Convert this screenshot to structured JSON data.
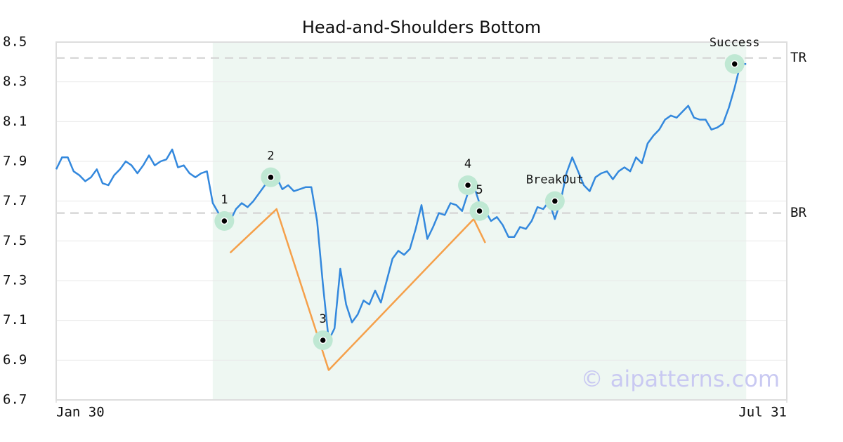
{
  "chart_data": {
    "type": "line",
    "title": "Head-and-Shoulders Bottom",
    "xlim": [
      0,
      126
    ],
    "xticks": [
      {
        "value": 0,
        "label": "Jan 30"
      },
      {
        "value": 126,
        "label": "Jul 31"
      }
    ],
    "ylim": [
      6.7,
      8.5
    ],
    "yticks": [
      6.7,
      6.9,
      7.1,
      7.3,
      7.5,
      7.7,
      7.9,
      8.1,
      8.3,
      8.5
    ],
    "grid": true,
    "shaded_range": [
      27,
      119
    ],
    "series": [
      {
        "color": "#3388dd",
        "x": [
          0,
          1,
          2,
          3,
          4,
          5,
          6,
          7,
          8,
          9,
          10,
          11,
          12,
          13,
          14,
          15,
          16,
          17,
          18,
          19,
          20,
          21,
          22,
          23,
          24,
          25,
          26,
          27,
          28,
          29,
          30,
          31,
          32,
          33,
          34,
          35,
          36,
          37,
          38,
          39,
          40,
          41,
          42,
          43,
          44,
          45,
          46,
          47,
          48,
          49,
          50,
          51,
          52,
          53,
          54,
          55,
          56,
          57,
          58,
          59,
          60,
          61,
          62,
          63,
          64,
          65,
          66,
          67,
          68,
          69,
          70,
          71,
          72,
          73,
          74,
          75,
          76,
          77,
          78,
          79,
          80,
          81,
          82,
          83,
          84,
          85,
          86,
          87,
          88,
          89,
          90,
          91,
          92,
          93,
          94,
          95,
          96,
          97,
          98,
          99,
          100,
          101,
          102,
          103,
          104,
          105,
          106,
          107,
          108,
          109,
          110,
          111,
          112,
          113,
          114,
          115,
          116,
          117,
          118,
          119
        ],
        "values": [
          7.86,
          7.92,
          7.92,
          7.85,
          7.83,
          7.8,
          7.82,
          7.86,
          7.79,
          7.78,
          7.83,
          7.86,
          7.9,
          7.88,
          7.84,
          7.88,
          7.93,
          7.88,
          7.9,
          7.91,
          7.96,
          7.87,
          7.88,
          7.84,
          7.82,
          7.84,
          7.85,
          7.69,
          7.64,
          7.6,
          7.6,
          7.66,
          7.69,
          7.67,
          7.7,
          7.74,
          7.78,
          7.79,
          7.82,
          7.76,
          7.78,
          7.75,
          7.76,
          7.77,
          7.77,
          7.6,
          7.28,
          7.0,
          7.06,
          7.36,
          7.18,
          7.09,
          7.13,
          7.2,
          7.18,
          7.25,
          7.19,
          7.3,
          7.41,
          7.45,
          7.43,
          7.46,
          7.56,
          7.68,
          7.51,
          7.57,
          7.64,
          7.63,
          7.69,
          7.68,
          7.65,
          7.74,
          7.78,
          7.69,
          7.65,
          7.6,
          7.62,
          7.58,
          7.52,
          7.52,
          7.57,
          7.56,
          7.6,
          7.67,
          7.66,
          7.7,
          7.61,
          7.7,
          7.84,
          7.92,
          7.85,
          7.78,
          7.75,
          7.82,
          7.84,
          7.85,
          7.81,
          7.85,
          7.87,
          7.85,
          7.92,
          7.89,
          7.99,
          8.03,
          8.06,
          8.11,
          8.13,
          8.12,
          8.15,
          8.18,
          8.12,
          8.11,
          8.11,
          8.06,
          8.07,
          8.09,
          8.17,
          8.27,
          8.39,
          8.39
        ]
      },
      {
        "color": "#f5a04a",
        "x": [
          30,
          38,
          47,
          72,
          74
        ],
        "values": [
          7.44,
          7.66,
          6.85,
          7.61,
          7.49
        ]
      }
    ],
    "annotations": [
      {
        "label": "1",
        "x": 29,
        "y": 7.6
      },
      {
        "label": "2",
        "x": 37,
        "y": 7.82
      },
      {
        "label": "3",
        "x": 46,
        "y": 7.0
      },
      {
        "label": "4",
        "x": 71,
        "y": 7.78
      },
      {
        "label": "5",
        "x": 73,
        "y": 7.65
      },
      {
        "label": "BreakOut",
        "x": 86,
        "y": 7.7
      },
      {
        "label": "Success",
        "x": 117,
        "y": 8.39
      }
    ],
    "hlines": [
      {
        "label": "TR",
        "value": 8.42
      },
      {
        "label": "BR",
        "value": 7.64
      }
    ],
    "watermark": "© aipatterns.com"
  }
}
